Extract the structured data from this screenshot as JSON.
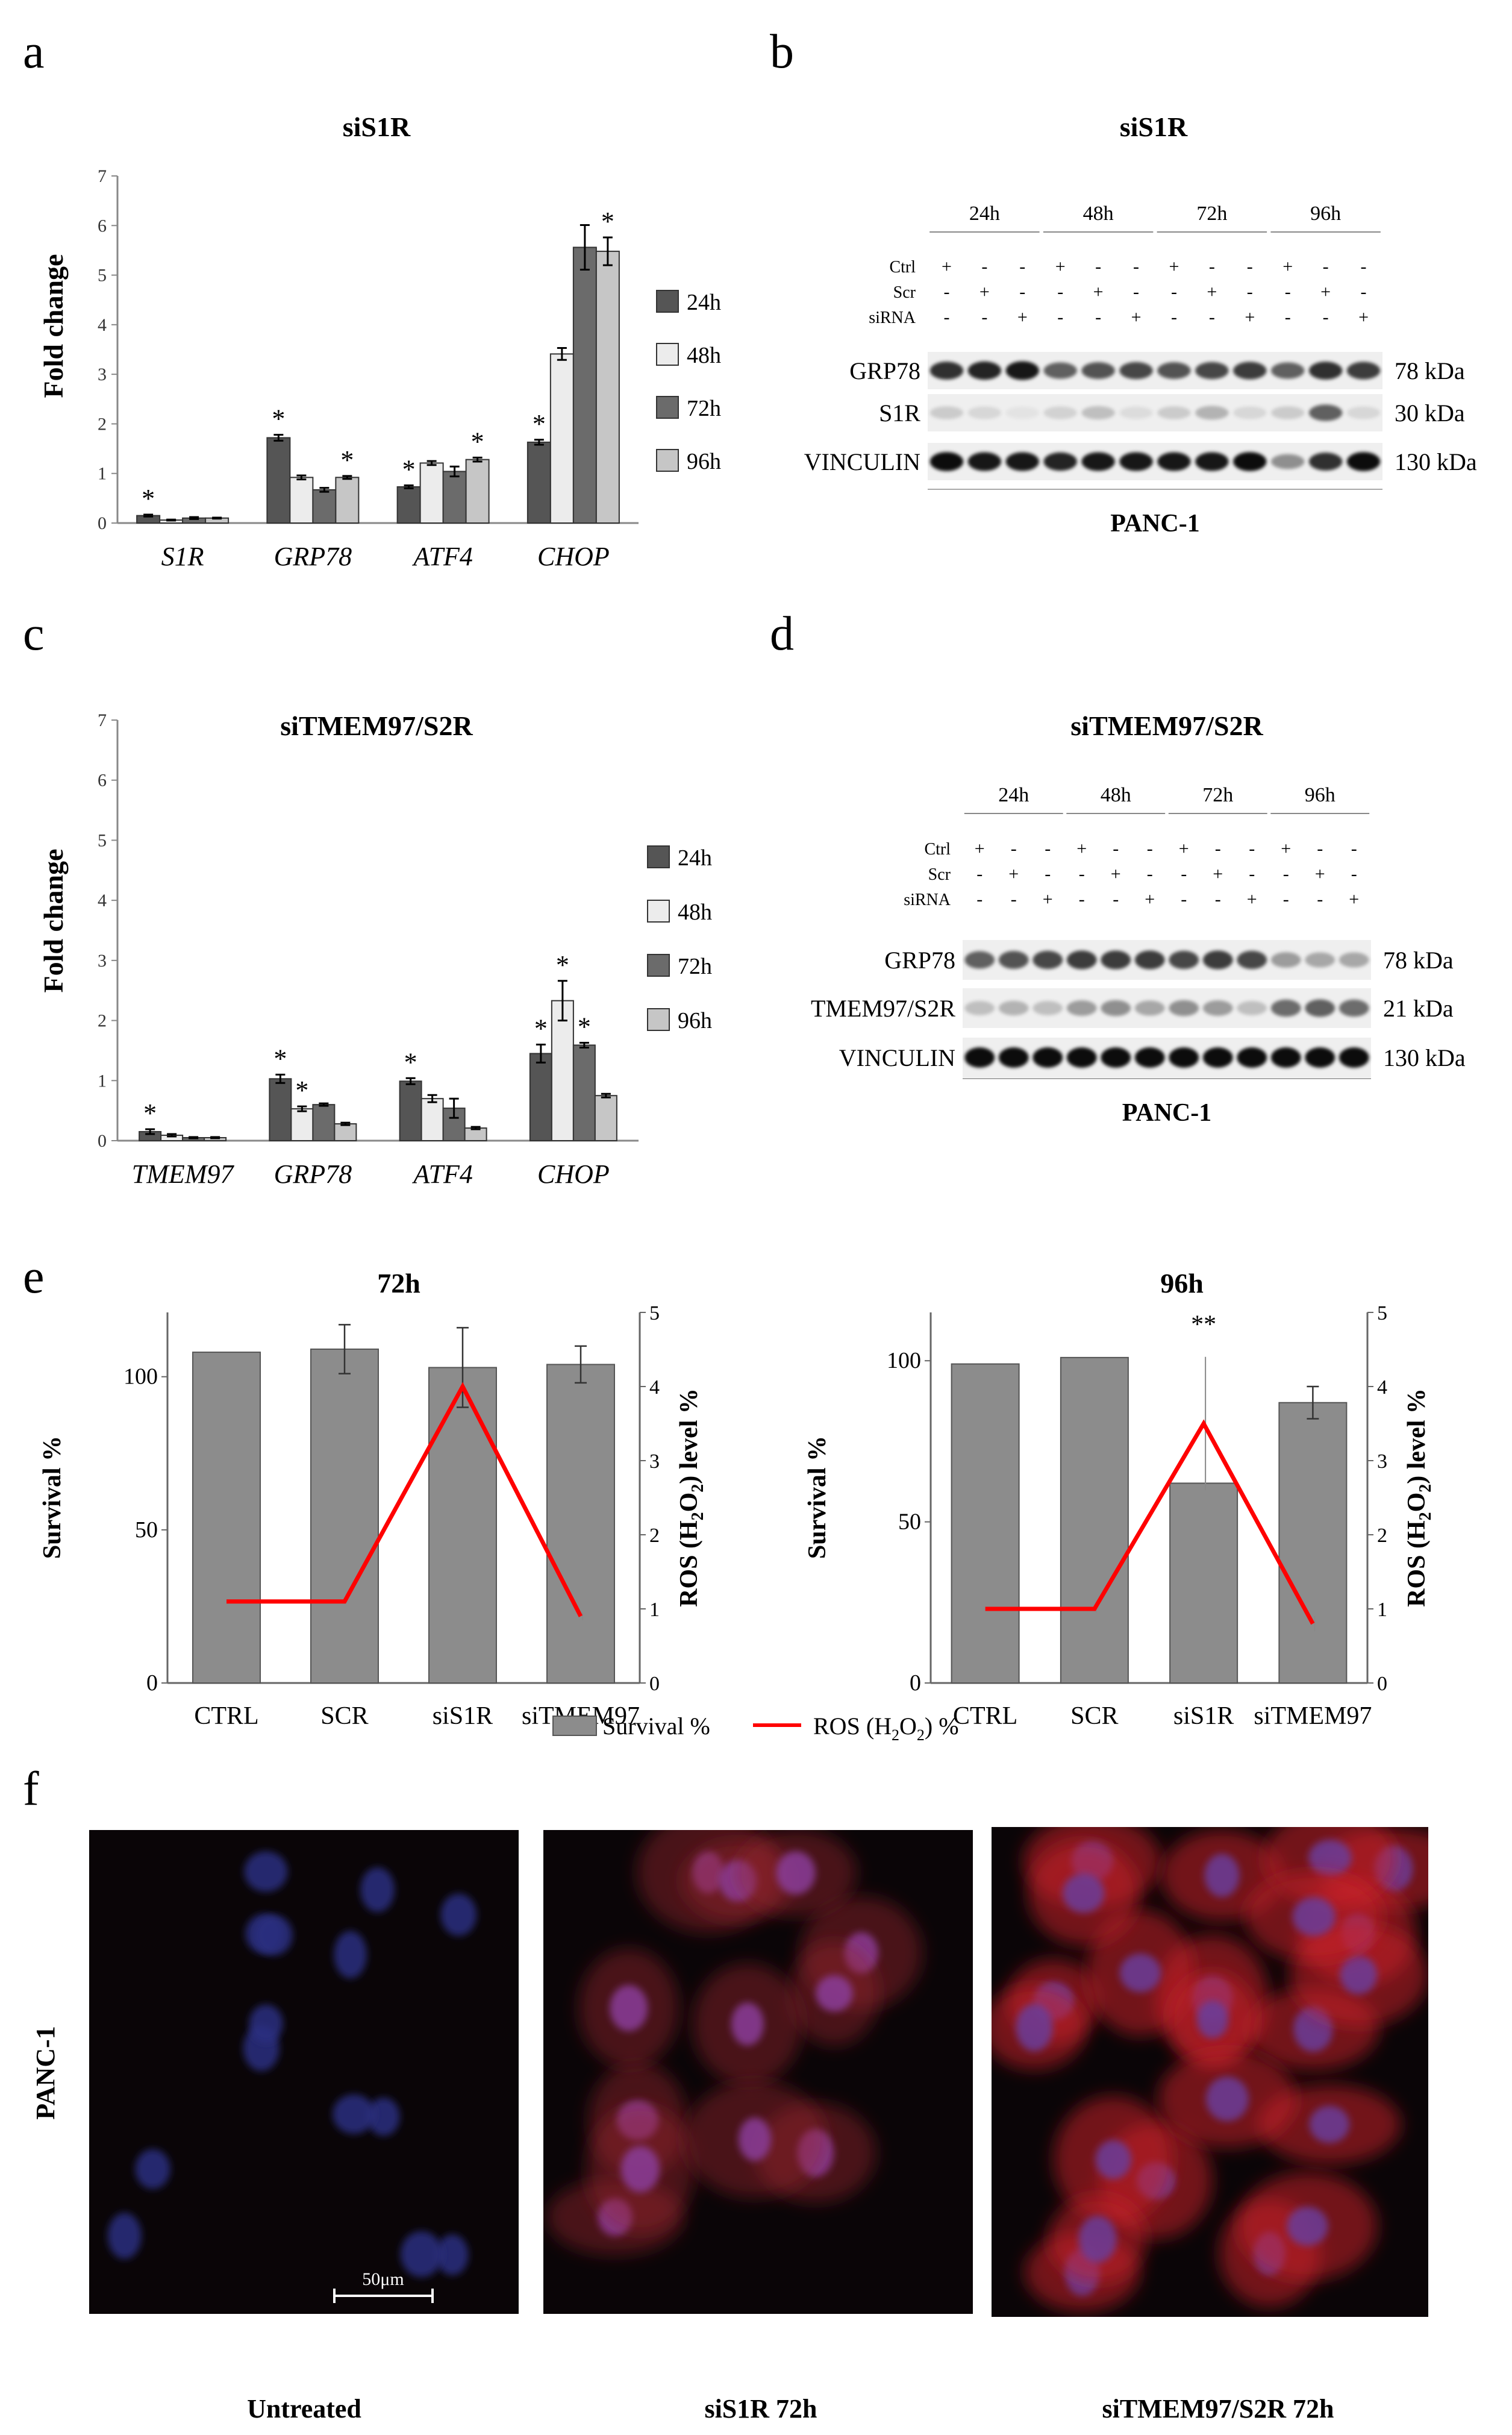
{
  "panel_letters": [
    "a",
    "b",
    "c",
    "d",
    "e",
    "f"
  ],
  "legends": {
    "time_points": [
      "24h",
      "48h",
      "72h",
      "96h"
    ],
    "time_colors": [
      "#555555",
      "#ececec",
      "#6b6b6b",
      "#c6c6c6"
    ],
    "survival_label": "Survival %",
    "ros_label_parts": [
      "ROS (H",
      "2",
      "O",
      "2",
      ") %"
    ],
    "survival_color": "#8c8c8c",
    "ros_color": "#ff0000"
  },
  "blots": [
    {
      "title": "siS1R",
      "time_labels": [
        "24h",
        "48h",
        "72h",
        "96h"
      ],
      "row_labels": [
        "Ctrl",
        "Scr",
        "siRNA"
      ],
      "signs": [
        [
          "+",
          "-",
          "-",
          "+",
          "-",
          "-",
          "+",
          "-",
          "-",
          "+",
          "-",
          "-"
        ],
        [
          "-",
          "+",
          "-",
          "-",
          "+",
          "-",
          "-",
          "+",
          "-",
          "-",
          "+",
          "-"
        ],
        [
          "-",
          "-",
          "+",
          "-",
          "-",
          "+",
          "-",
          "-",
          "+",
          "-",
          "-",
          "+"
        ]
      ],
      "bands": [
        {
          "name": "GRP78",
          "kda": "78 kDa"
        },
        {
          "name": "S1R",
          "kda": "30 kDa"
        },
        {
          "name": "VINCULIN",
          "kda": "130 kDa"
        }
      ],
      "cell_line": "PANC-1"
    },
    {
      "title": "siTMEM97/S2R",
      "time_labels": [
        "24h",
        "48h",
        "72h",
        "96h"
      ],
      "row_labels": [
        "Ctrl",
        "Scr",
        "siRNA"
      ],
      "signs": [
        [
          "+",
          "-",
          "-",
          "+",
          "-",
          "-",
          "+",
          "-",
          "-",
          "+",
          "-",
          "-"
        ],
        [
          "-",
          "+",
          "-",
          "-",
          "+",
          "-",
          "-",
          "+",
          "-",
          "-",
          "+",
          "-"
        ],
        [
          "-",
          "-",
          "+",
          "-",
          "-",
          "+",
          "-",
          "-",
          "+",
          "-",
          "-",
          "+"
        ]
      ],
      "bands": [
        {
          "name": "GRP78",
          "kda": "78 kDa"
        },
        {
          "name": "TMEM97/S2R",
          "kda": "21 kDa"
        },
        {
          "name": "VINCULIN",
          "kda": "130 kDa"
        }
      ],
      "cell_line": "PANC-1"
    }
  ],
  "microscopy": {
    "row_label": "PANC-1",
    "panels": [
      "Untreated",
      "siS1R 72h",
      "siTMEM97/S2R 72h"
    ],
    "scale_bar": "50μm"
  },
  "chart_data": [
    {
      "panel": "a",
      "type": "bar",
      "title": "siS1R",
      "ylabel": "Fold change",
      "ylim": [
        0,
        7
      ],
      "yticks": [
        0,
        1,
        2,
        3,
        4,
        5,
        6,
        7
      ],
      "categories": [
        "S1R",
        "GRP78",
        "ATF4",
        "CHOP"
      ],
      "series": [
        {
          "name": "24h",
          "values": [
            0.15,
            1.72,
            0.73,
            1.63
          ],
          "errors": [
            0.02,
            0.06,
            0.03,
            0.05
          ]
        },
        {
          "name": "48h",
          "values": [
            0.06,
            0.92,
            1.21,
            3.41
          ],
          "errors": [
            0.01,
            0.04,
            0.04,
            0.12
          ]
        },
        {
          "name": "72h",
          "values": [
            0.1,
            0.67,
            1.04,
            5.56
          ],
          "errors": [
            0.02,
            0.04,
            0.1,
            0.45
          ]
        },
        {
          "name": "96h",
          "values": [
            0.1,
            0.92,
            1.28,
            5.48
          ],
          "errors": [
            0.01,
            0.03,
            0.04,
            0.28
          ]
        }
      ],
      "significance": [
        [
          "*",
          "*",
          "*",
          "*"
        ],
        [
          "",
          "",
          "",
          ""
        ],
        [
          "",
          "",
          "",
          ""
        ],
        [
          "",
          "*",
          "*",
          "*"
        ]
      ]
    },
    {
      "panel": "c",
      "type": "bar",
      "title": "siTMEM97/S2R",
      "ylabel": "Fold change",
      "ylim": [
        0,
        7
      ],
      "yticks": [
        0,
        1,
        2,
        3,
        4,
        5,
        6,
        7
      ],
      "categories": [
        "TMEM97",
        "GRP78",
        "ATF4",
        "CHOP"
      ],
      "series": [
        {
          "name": "24h",
          "values": [
            0.15,
            1.03,
            0.99,
            1.45
          ],
          "errors": [
            0.04,
            0.07,
            0.05,
            0.15
          ]
        },
        {
          "name": "48h",
          "values": [
            0.09,
            0.53,
            0.7,
            2.33
          ],
          "errors": [
            0.02,
            0.04,
            0.06,
            0.33
          ]
        },
        {
          "name": "72h",
          "values": [
            0.05,
            0.6,
            0.54,
            1.59
          ],
          "errors": [
            0.01,
            0.02,
            0.16,
            0.04
          ]
        },
        {
          "name": "96h",
          "values": [
            0.05,
            0.28,
            0.21,
            0.75
          ],
          "errors": [
            0.01,
            0.02,
            0.02,
            0.03
          ]
        }
      ],
      "significance": [
        [
          "*",
          "*",
          "*",
          "*"
        ],
        [
          "",
          "*",
          "",
          "*"
        ],
        [
          "",
          "",
          "",
          "*"
        ],
        [
          "",
          "",
          "",
          ""
        ]
      ]
    },
    {
      "panel": "e-left",
      "type": "bar",
      "title": "72h",
      "ylabel": "Survival %",
      "y2label_parts": [
        "ROS (H",
        "2",
        "O",
        "2",
        ") level %"
      ],
      "ylim": [
        0,
        121
      ],
      "yticks": [
        0,
        50,
        100
      ],
      "y2lim": [
        0,
        5
      ],
      "y2ticks": [
        0,
        1,
        2,
        3,
        4,
        5
      ],
      "categories": [
        "CTRL",
        "SCR",
        "siS1R",
        "siTMEM97"
      ],
      "series": [
        {
          "name": "Survival %",
          "values": [
            108,
            109,
            103,
            104
          ],
          "errors": [
            0,
            8,
            13,
            6
          ]
        },
        {
          "name": "ROS (H2O2) %",
          "axis": "right",
          "values": [
            1.1,
            1.1,
            4.0,
            0.9
          ],
          "errors": [
            0,
            0,
            0,
            0.05
          ]
        }
      ],
      "significance": []
    },
    {
      "panel": "e-right",
      "type": "bar",
      "title": "96h",
      "ylabel": "Survival %",
      "y2label_parts": [
        "ROS (H",
        "2",
        "O",
        "2",
        ") level %"
      ],
      "ylim": [
        0,
        115
      ],
      "yticks": [
        0,
        50,
        100
      ],
      "y2lim": [
        0,
        5
      ],
      "y2ticks": [
        0,
        1,
        2,
        3,
        4,
        5
      ],
      "categories": [
        "CTRL",
        "SCR",
        "siS1R",
        "siTMEM97"
      ],
      "series": [
        {
          "name": "Survival %",
          "values": [
            99,
            101,
            62,
            87
          ],
          "errors": [
            0,
            0,
            0,
            5
          ]
        },
        {
          "name": "ROS (H2O2) %",
          "axis": "right",
          "values": [
            1.0,
            1.0,
            3.5,
            0.8
          ],
          "errors": [
            0,
            0.05,
            0.9,
            0.1
          ]
        }
      ],
      "significance": [
        "",
        "",
        "**",
        ""
      ]
    }
  ]
}
